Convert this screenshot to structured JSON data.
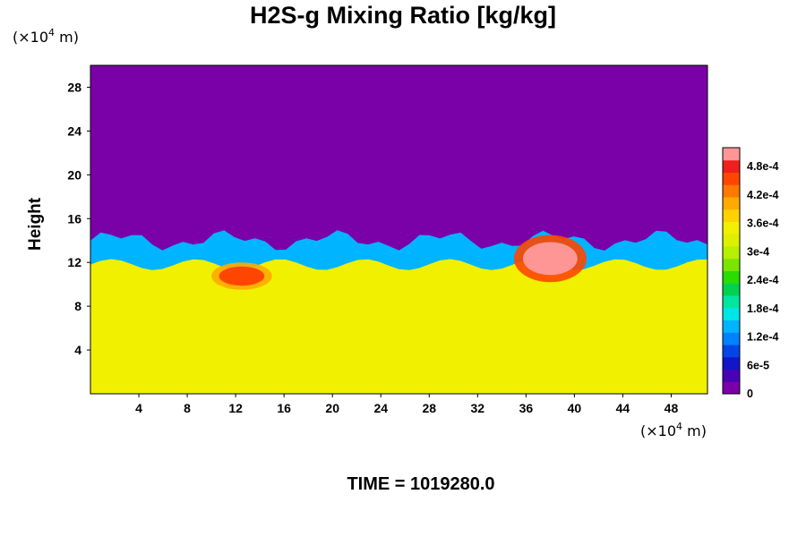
{
  "chart_data": {
    "type": "heatmap",
    "title": "H2S-g Mixing Ratio [kg/kg]",
    "ylabel": "Height",
    "y_unit": {
      "base": "(×10",
      "exp": "4",
      "tail": " m)"
    },
    "x_unit": {
      "base": "(×10",
      "exp": "4",
      "tail": " m)"
    },
    "xlim": [
      0,
      51
    ],
    "ylim": [
      0,
      30
    ],
    "x_ticks": [
      4,
      8,
      12,
      16,
      20,
      24,
      28,
      32,
      36,
      40,
      44,
      48
    ],
    "y_ticks": [
      4,
      8,
      12,
      16,
      20,
      24,
      28
    ],
    "colorbar": {
      "range": [
        0,
        0.00052
      ],
      "tick_labels": [
        "0",
        "6e-5",
        "1.2e-4",
        "1.8e-4",
        "2.4e-4",
        "3e-4",
        "3.6e-4",
        "4.2e-4",
        "4.8e-4"
      ],
      "tick_values": [
        0,
        6e-05,
        0.00012,
        0.00018,
        0.00024,
        0.0003,
        0.00036,
        0.00042,
        0.00048
      ],
      "colors": [
        "#7a00a8",
        "#4a00b4",
        "#1414c8",
        "#0046e6",
        "#0082ff",
        "#00b4ff",
        "#00e6e6",
        "#00e6a0",
        "#00d250",
        "#2adc00",
        "#78e600",
        "#b4f000",
        "#dcf000",
        "#f0f000",
        "#ffd200",
        "#ffaa00",
        "#ff7800",
        "#ff4600",
        "#f01e1e",
        "#ff9696"
      ]
    },
    "regions": {
      "upper_value": 0,
      "lower_value": 0.00034,
      "interface_height_range": [
        13,
        15
      ],
      "high_patches": [
        {
          "x_range": [
            35,
            41
          ],
          "y_range": [
            10.2,
            14.5
          ],
          "value": 0.0005
        },
        {
          "x_range": [
            10,
            15
          ],
          "y_range": [
            9.5,
            12
          ],
          "value": 0.00045
        }
      ]
    }
  },
  "footer": {
    "text": "TIME = 1019280.0"
  }
}
